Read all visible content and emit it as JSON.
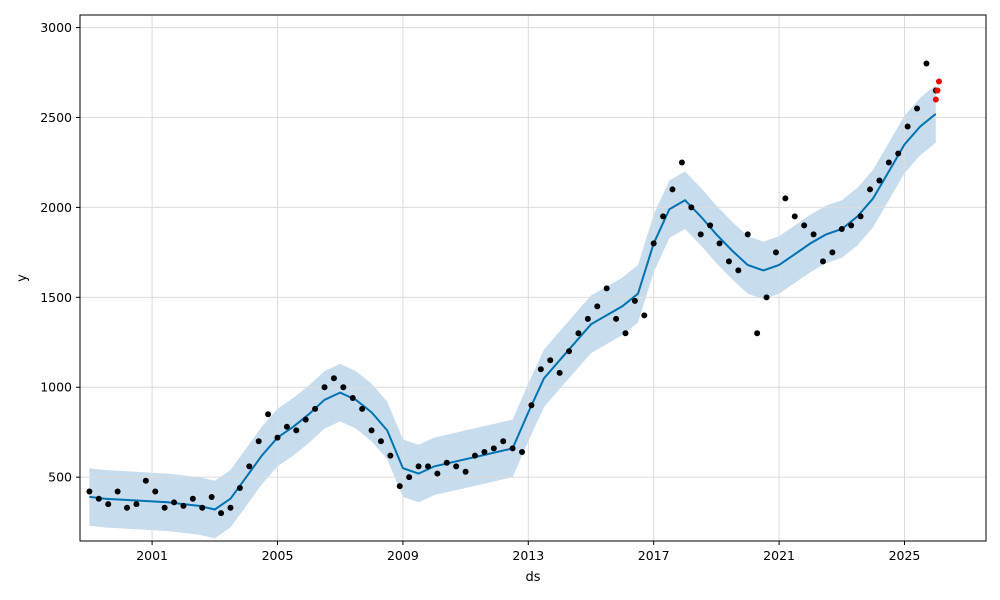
{
  "chart_data": {
    "type": "scatter",
    "title": "",
    "xlabel": "ds",
    "ylabel": "y",
    "xlim": [
      1998.7,
      2027.6
    ],
    "ylim": [
      145,
      3070
    ],
    "grid": true,
    "legend": "none",
    "x_ticks": [
      2001,
      2005,
      2009,
      2013,
      2017,
      2021,
      2025
    ],
    "x_tick_labels": [
      "2001",
      "2005",
      "2009",
      "2013",
      "2017",
      "2021",
      "2025"
    ],
    "y_ticks": [
      500,
      1000,
      1500,
      2000,
      2500,
      3000
    ],
    "y_tick_labels": [
      "500",
      "1000",
      "1500",
      "2000",
      "2500",
      "3000"
    ],
    "colors": {
      "observed": "#000000",
      "forecast_line": "#0072b2",
      "uncertainty_band": "#b9d5ea",
      "future": "#ff0000",
      "grid": "#dcdcdc"
    },
    "series": [
      {
        "role": "observed",
        "x": [
          1999.0,
          1999.3,
          1999.6,
          1999.9,
          2000.2,
          2000.5,
          2000.8,
          2001.1,
          2001.4,
          2001.7,
          2002.0,
          2002.3,
          2002.6,
          2002.9,
          2003.2,
          2003.5,
          2003.8,
          2004.1,
          2004.4,
          2004.7,
          2005.0,
          2005.3,
          2005.6,
          2005.9,
          2006.2,
          2006.5,
          2006.8,
          2007.1,
          2007.4,
          2007.7,
          2008.0,
          2008.3,
          2008.6,
          2008.9,
          2009.2,
          2009.5,
          2009.8,
          2010.1,
          2010.4,
          2010.7,
          2011.0,
          2011.3,
          2011.6,
          2011.9,
          2012.2,
          2012.5,
          2012.8,
          2013.1,
          2013.4,
          2013.7,
          2014.0,
          2014.3,
          2014.6,
          2014.9,
          2015.2,
          2015.5,
          2015.8,
          2016.1,
          2016.4,
          2016.7,
          2017.0,
          2017.3,
          2017.6,
          2017.9,
          2018.2,
          2018.5,
          2018.8,
          2019.1,
          2019.4,
          2019.7,
          2020.0,
          2020.3,
          2020.6,
          2020.9,
          2021.2,
          2021.5,
          2021.8,
          2022.1,
          2022.4,
          2022.7,
          2023.0,
          2023.3,
          2023.6,
          2023.9,
          2024.2,
          2024.5,
          2024.8,
          2025.1,
          2025.4,
          2025.7,
          2026.0
        ],
        "y": [
          420,
          380,
          350,
          420,
          330,
          350,
          480,
          420,
          330,
          360,
          340,
          380,
          330,
          390,
          300,
          330,
          440,
          560,
          700,
          850,
          720,
          780,
          760,
          820,
          880,
          1000,
          1050,
          1000,
          940,
          880,
          760,
          700,
          620,
          450,
          500,
          560,
          560,
          520,
          580,
          560,
          530,
          620,
          640,
          660,
          700,
          660,
          640,
          900,
          1100,
          1150,
          1080,
          1200,
          1300,
          1380,
          1450,
          1550,
          1380,
          1300,
          1480,
          1400,
          1800,
          1950,
          2100,
          2250,
          2000,
          1850,
          1900,
          1800,
          1700,
          1650,
          1850,
          1300,
          1500,
          1750,
          2050,
          1950,
          1900,
          1850,
          1700,
          1750,
          1880,
          1900,
          1950,
          2100,
          2150,
          2250,
          2300,
          2450,
          2550,
          2800,
          2650
        ]
      },
      {
        "role": "future",
        "x": [
          2026.0,
          2026.05,
          2026.1
        ],
        "y": [
          2600,
          2650,
          2700
        ]
      },
      {
        "role": "forecast",
        "x": [
          1999.0,
          1999.5,
          2000.0,
          2000.5,
          2001.0,
          2001.5,
          2002.0,
          2002.5,
          2003.0,
          2003.5,
          2004.0,
          2004.5,
          2005.0,
          2005.5,
          2006.0,
          2006.5,
          2007.0,
          2007.5,
          2008.0,
          2008.5,
          2009.0,
          2009.5,
          2010.0,
          2010.5,
          2011.0,
          2011.5,
          2012.0,
          2012.5,
          2013.0,
          2013.5,
          2014.0,
          2014.5,
          2015.0,
          2015.5,
          2016.0,
          2016.5,
          2017.0,
          2017.5,
          2018.0,
          2018.5,
          2019.0,
          2019.5,
          2020.0,
          2020.5,
          2021.0,
          2021.5,
          2022.0,
          2022.5,
          2023.0,
          2023.5,
          2024.0,
          2024.5,
          2025.0,
          2025.5,
          2026.0
        ],
        "y": [
          390,
          380,
          375,
          370,
          365,
          360,
          350,
          340,
          320,
          380,
          500,
          620,
          720,
          780,
          850,
          930,
          970,
          930,
          860,
          760,
          550,
          520,
          560,
          580,
          600,
          620,
          640,
          660,
          860,
          1050,
          1150,
          1250,
          1350,
          1400,
          1450,
          1520,
          1800,
          1990,
          2040,
          1950,
          1850,
          1760,
          1680,
          1650,
          1680,
          1740,
          1800,
          1850,
          1880,
          1950,
          2050,
          2200,
          2350,
          2450,
          2520
        ]
      }
    ],
    "uncertainty_band": {
      "x": [
        1999.0,
        1999.5,
        2000.0,
        2000.5,
        2001.0,
        2001.5,
        2002.0,
        2002.5,
        2003.0,
        2003.5,
        2004.0,
        2004.5,
        2005.0,
        2005.5,
        2006.0,
        2006.5,
        2007.0,
        2007.5,
        2008.0,
        2008.5,
        2009.0,
        2009.5,
        2010.0,
        2010.5,
        2011.0,
        2011.5,
        2012.0,
        2012.5,
        2013.0,
        2013.5,
        2014.0,
        2014.5,
        2015.0,
        2015.5,
        2016.0,
        2016.5,
        2017.0,
        2017.5,
        2018.0,
        2018.5,
        2019.0,
        2019.5,
        2020.0,
        2020.5,
        2021.0,
        2021.5,
        2022.0,
        2022.5,
        2023.0,
        2023.5,
        2024.0,
        2024.5,
        2025.0,
        2025.5,
        2026.0
      ],
      "lower": [
        230,
        220,
        215,
        210,
        205,
        200,
        190,
        180,
        160,
        220,
        340,
        460,
        560,
        620,
        690,
        770,
        810,
        770,
        700,
        600,
        390,
        360,
        400,
        420,
        440,
        460,
        480,
        500,
        700,
        890,
        990,
        1090,
        1190,
        1240,
        1290,
        1360,
        1640,
        1830,
        1880,
        1790,
        1690,
        1600,
        1520,
        1490,
        1520,
        1580,
        1640,
        1690,
        1720,
        1790,
        1890,
        2040,
        2190,
        2290,
        2360
      ],
      "upper": [
        550,
        540,
        535,
        530,
        525,
        520,
        510,
        500,
        480,
        540,
        660,
        780,
        880,
        940,
        1010,
        1090,
        1130,
        1090,
        1020,
        920,
        710,
        680,
        720,
        740,
        760,
        780,
        800,
        820,
        1020,
        1210,
        1310,
        1410,
        1510,
        1560,
        1610,
        1680,
        1960,
        2150,
        2200,
        2110,
        2010,
        1920,
        1840,
        1810,
        1840,
        1900,
        1960,
        2010,
        2040,
        2110,
        2210,
        2360,
        2510,
        2610,
        2680
      ]
    }
  }
}
